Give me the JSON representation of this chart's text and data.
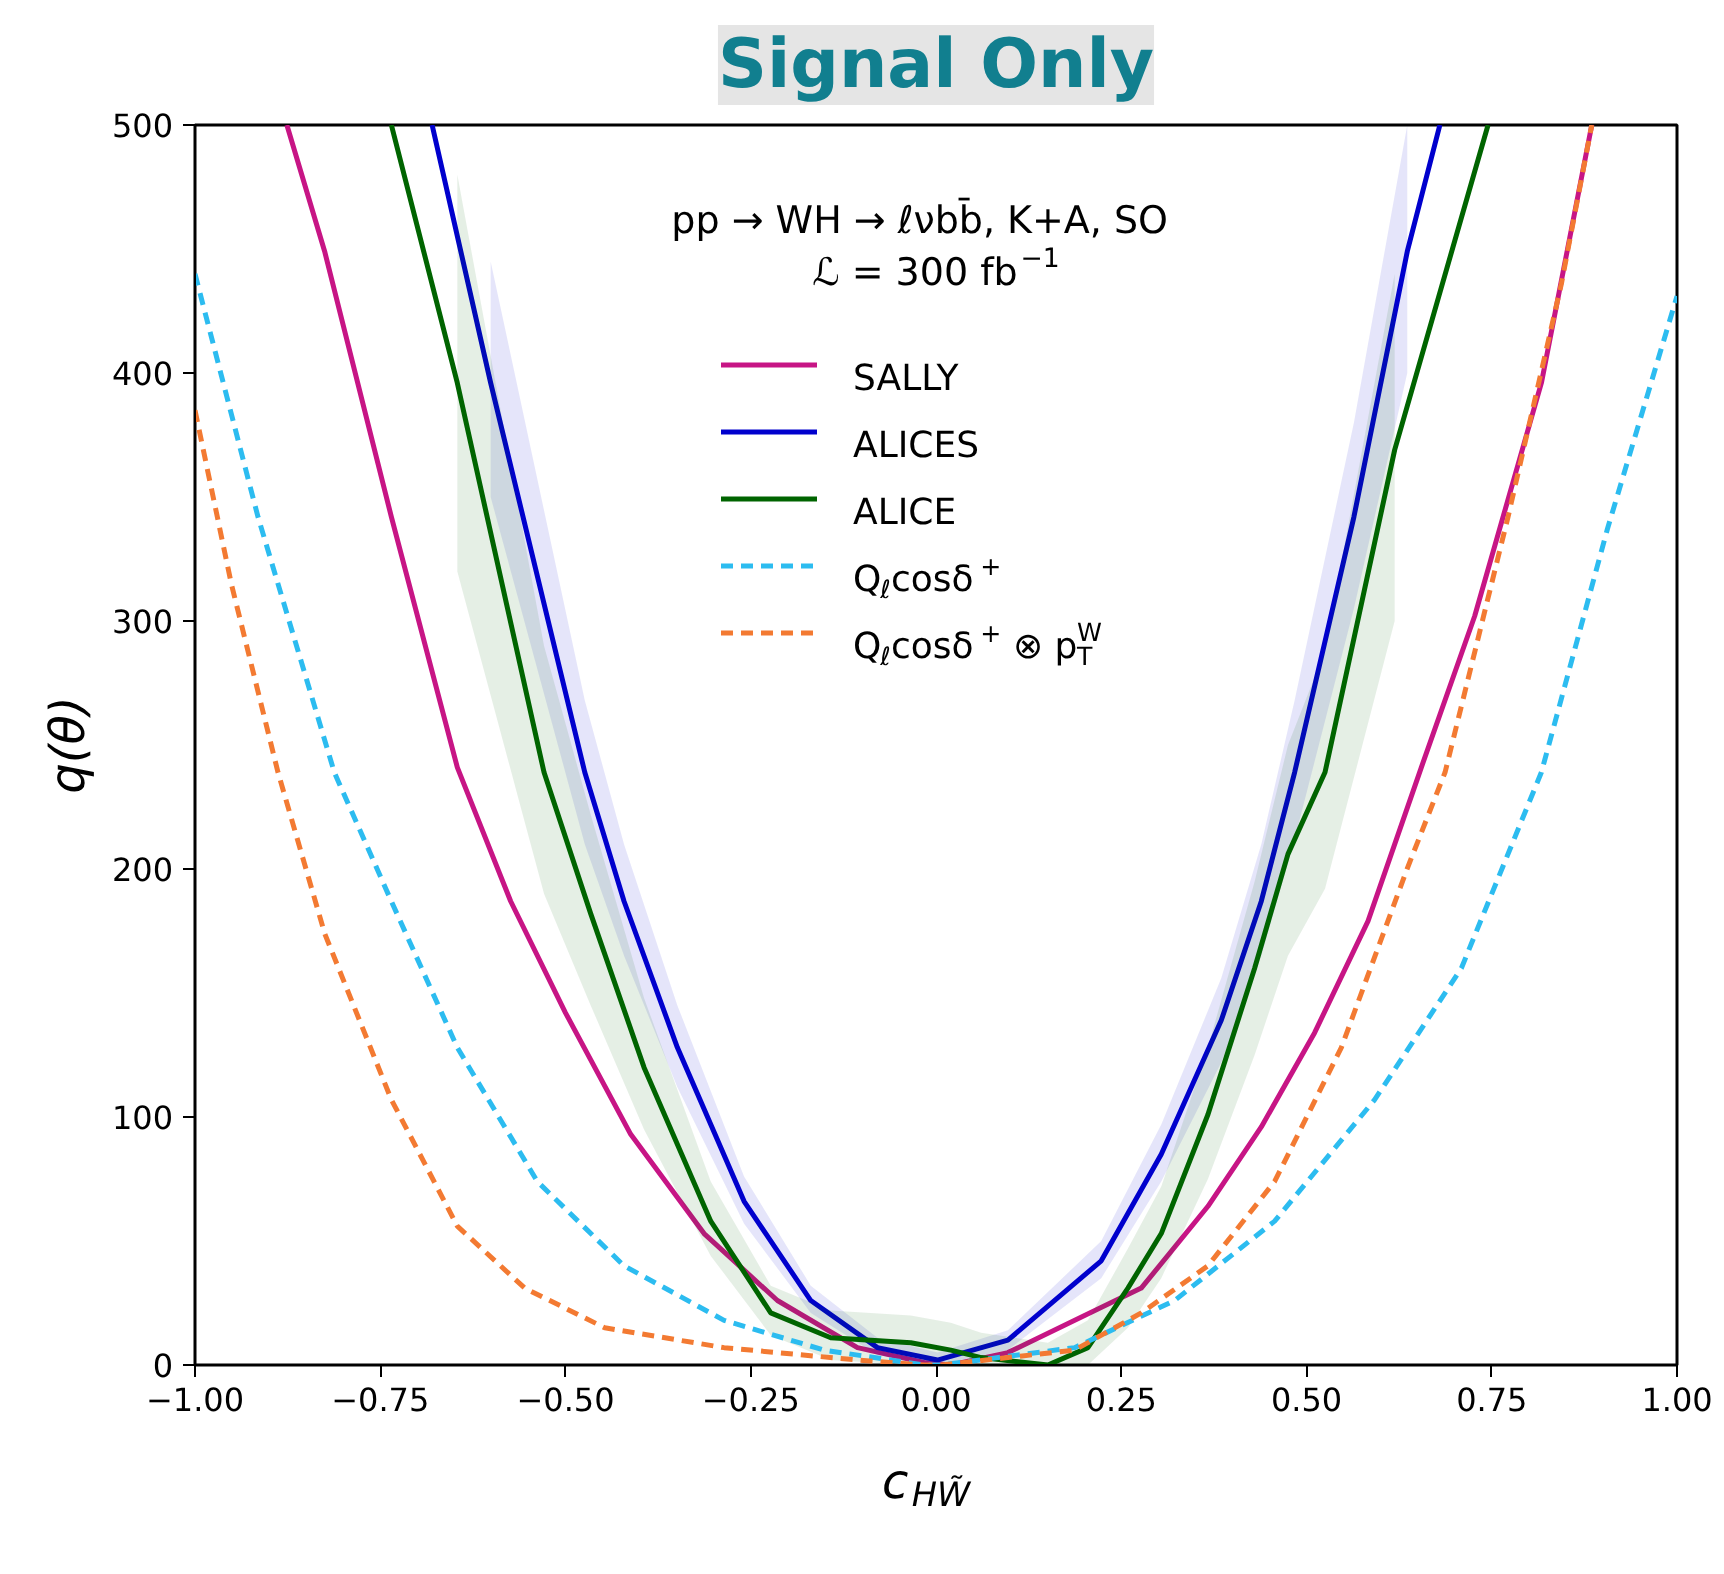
{
  "chart_data": {
    "type": "line",
    "title": "Signal Only",
    "xlabel": "c$_{HW̃}$",
    "ylabel": "q(θ)",
    "annotations": [
      "pp → WH → ℓνbb̄, K+A, SO",
      "ℒ = 300 fb$^{−1}$"
    ],
    "xlim": [
      -1,
      1
    ],
    "ylim": [
      0,
      500
    ],
    "xticks": [
      {
        "value": -1,
        "label": "−1.00"
      },
      {
        "value": -0.75,
        "label": "−0.75"
      },
      {
        "value": -0.5,
        "label": "−0.50"
      },
      {
        "value": -0.25,
        "label": "−0.25"
      },
      {
        "value": 0,
        "label": "0.00"
      },
      {
        "value": 0.25,
        "label": "0.25"
      },
      {
        "value": 0.5,
        "label": "0.50"
      },
      {
        "value": 0.75,
        "label": "0.75"
      },
      {
        "value": 1,
        "label": "1.00"
      }
    ],
    "yticks": [
      0,
      100,
      200,
      300,
      400,
      500
    ],
    "grid": false,
    "legend": "top",
    "line_style": "solid",
    "series": [
      {
        "name": "SALLY",
        "color": "#c71585",
        "x": [
          -0.876,
          -0.825,
          -0.735,
          -0.646,
          -0.574,
          -0.5,
          -0.412,
          -0.313,
          -0.214,
          -0.106,
          -0.016,
          0.02,
          0.097,
          0.277,
          0.367,
          0.439,
          0.511,
          0.583,
          0.655,
          0.727,
          0.817,
          0.885
        ],
        "values": [
          500,
          449,
          342,
          241,
          187,
          142,
          93,
          53,
          26,
          7,
          1,
          0,
          5,
          31,
          64,
          96,
          134,
          179,
          241,
          302,
          396,
          500
        ]
      },
      {
        "name": "ALICES",
        "color": "#0000cd",
        "x": [
          -0.68,
          -0.601,
          -0.474,
          -0.421,
          -0.349,
          -0.259,
          -0.169,
          -0.079,
          0.002,
          0.097,
          0.223,
          0.304,
          0.385,
          0.439,
          0.484,
          0.564,
          0.636,
          0.68
        ],
        "values": [
          500,
          396,
          239,
          187,
          128,
          66,
          26,
          7,
          2,
          10,
          42,
          85,
          139,
          187,
          239,
          342,
          449,
          500
        ],
        "lower": [
          null,
          350,
          210,
          165,
          112,
          57,
          21,
          4,
          0,
          6,
          35,
          74,
          122,
          165,
          212,
          305,
          400,
          null
        ],
        "upper": [
          null,
          445,
          268,
          210,
          145,
          76,
          32,
          11,
          5,
          14,
          50,
          97,
          156,
          210,
          268,
          380,
          500,
          null
        ]
      },
      {
        "name": "ALICE",
        "color": "#006400",
        "x": [
          -0.735,
          -0.646,
          -0.529,
          -0.466,
          -0.394,
          -0.304,
          -0.223,
          -0.142,
          -0.034,
          0.02,
          0.061,
          0.151,
          0.205,
          0.259,
          0.304,
          0.367,
          0.43,
          0.475,
          0.525,
          0.619,
          0.745
        ],
        "values": [
          500,
          396,
          239,
          182,
          120,
          58,
          21,
          11,
          9,
          6,
          3,
          0,
          7,
          31,
          53,
          101,
          160,
          206,
          239,
          369,
          500
        ],
        "lower": [
          null,
          320,
          190,
          145,
          95,
          44,
          12,
          2,
          0,
          0,
          0,
          0,
          0,
          15,
          35,
          75,
          125,
          165,
          192,
          300,
          null
        ],
        "upper": [
          null,
          480,
          290,
          222,
          148,
          74,
          32,
          22,
          20,
          17,
          13,
          9,
          18,
          47,
          72,
          128,
          195,
          250,
          288,
          440,
          null
        ]
      },
      {
        "name": "Q$_{ℓ}$cosδ$^{+}$",
        "color": "#2cbcf0",
        "line_style": "dashed",
        "x": [
          -1,
          -0.915,
          -0.812,
          -0.735,
          -0.646,
          -0.538,
          -0.421,
          -0.286,
          -0.151,
          -0.016,
          0.007,
          0.187,
          0.322,
          0.457,
          0.592,
          0.709,
          0.817,
          0.906,
          1
        ],
        "values": [
          440,
          342,
          239,
          187,
          128,
          74,
          40,
          18,
          6,
          0,
          0,
          7,
          26,
          58,
          107,
          160,
          239,
          337,
          431
        ]
      },
      {
        "name": "Q$_{ℓ}$cosδ$^{+}$ ⊗ p$^{W}$$_{T}$",
        "color": "#f37a32",
        "line_style": "dashed",
        "x": [
          -1,
          -0.951,
          -0.888,
          -0.825,
          -0.735,
          -0.646,
          -0.555,
          -0.447,
          -0.286,
          -0.106,
          -0.016,
          0.007,
          0.187,
          0.277,
          0.367,
          0.457,
          0.547,
          0.637,
          0.687,
          0.772,
          0.844,
          0.885
        ],
        "values": [
          385,
          315,
          239,
          174,
          107,
          56,
          31,
          15,
          7,
          2,
          0,
          0,
          6,
          21,
          40,
          74,
          128,
          201,
          239,
          342,
          436,
          500
        ]
      }
    ]
  }
}
